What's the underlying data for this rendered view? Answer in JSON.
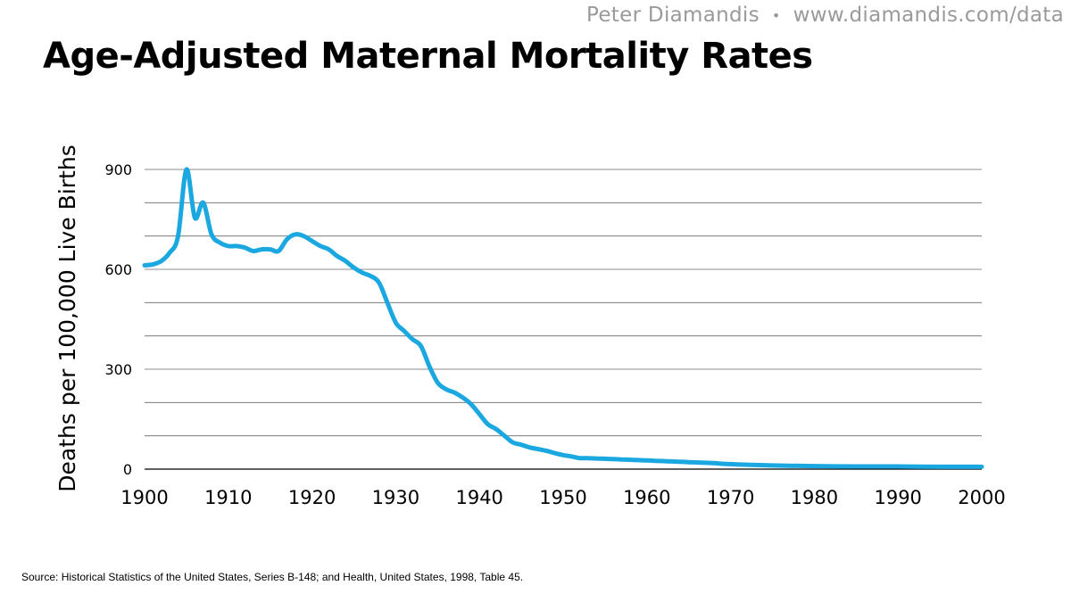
{
  "header": {
    "brand_name": "Peter Diamandis",
    "brand_separator": "•",
    "brand_url": "www.diamandis.com/data"
  },
  "title": "Age-Adjusted Maternal Mortality Rates",
  "source": "Source: Historical Statistics of the United States, Series B-148; and Health, United States, 1998, Table 45.",
  "chart_data": {
    "type": "line",
    "title": "Age-Adjusted Maternal Mortality Rates",
    "xlabel": "",
    "ylabel": "Deaths per 100,000 Live Births",
    "xlim": [
      1900,
      2000
    ],
    "ylim": [
      0,
      900
    ],
    "xticks": [
      1900,
      1910,
      1920,
      1930,
      1940,
      1950,
      1960,
      1970,
      1980,
      1990,
      2000
    ],
    "yticks": [
      0,
      300,
      600,
      900
    ],
    "ytick_labels": [
      "0",
      "300",
      "600",
      "900"
    ],
    "grid": true,
    "legend": "none",
    "line_color": "#1ba8e0",
    "series": [
      {
        "x": [
          1900,
          1901,
          1902,
          1903,
          1904,
          1905,
          1906,
          1907,
          1908,
          1909,
          1910,
          1911,
          1912,
          1913,
          1914,
          1915,
          1916,
          1917,
          1918,
          1919,
          1920,
          1921,
          1922,
          1923,
          1924,
          1925,
          1926,
          1927,
          1928,
          1929,
          1930,
          1931,
          1932,
          1933,
          1934,
          1935,
          1936,
          1937,
          1938,
          1939,
          1940,
          1941,
          1942,
          1943,
          1944,
          1945,
          1946,
          1947,
          1948,
          1949,
          1950,
          1951,
          1952,
          1953,
          1954,
          1955,
          1956,
          1957,
          1958,
          1959,
          1960,
          1961,
          1962,
          1963,
          1964,
          1965,
          1966,
          1967,
          1968,
          1969,
          1970,
          1972,
          1975,
          1980,
          1985,
          1990,
          1995,
          2000
        ],
        "values": [
          612,
          615,
          625,
          650,
          700,
          900,
          755,
          800,
          705,
          680,
          670,
          670,
          665,
          655,
          660,
          660,
          655,
          690,
          705,
          700,
          685,
          670,
          660,
          640,
          625,
          605,
          590,
          580,
          560,
          500,
          440,
          415,
          390,
          370,
          310,
          260,
          240,
          230,
          215,
          195,
          165,
          135,
          120,
          100,
          80,
          73,
          65,
          60,
          55,
          48,
          42,
          38,
          33,
          33,
          32,
          31,
          30,
          29,
          28,
          27,
          26,
          25,
          24,
          23,
          22,
          21,
          20,
          19,
          18,
          16,
          15,
          13,
          11,
          9,
          8,
          8,
          7,
          7
        ]
      }
    ]
  }
}
